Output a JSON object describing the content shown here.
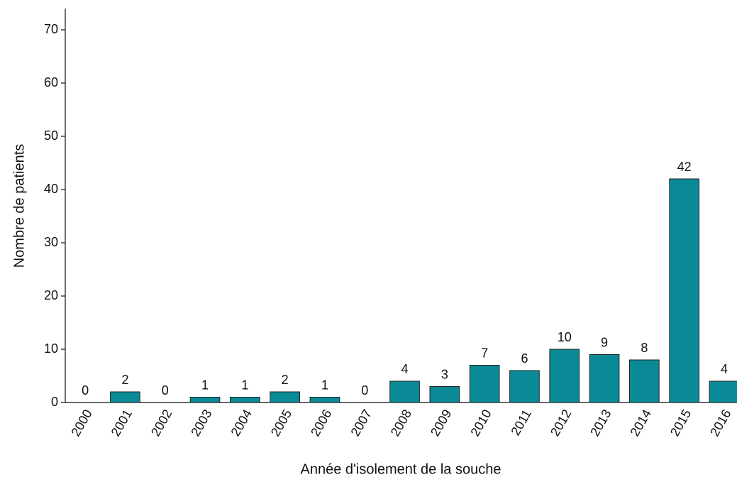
{
  "chart_data": {
    "type": "bar",
    "x_label": "Année d'isolement de la souche",
    "y_label": "Nombre de patients",
    "categories": [
      "2000",
      "2001",
      "2002",
      "2003",
      "2004",
      "2005",
      "2006",
      "2007",
      "2008",
      "2009",
      "2010",
      "2011",
      "2012",
      "2013",
      "2014",
      "2015",
      "2016"
    ],
    "values": [
      0,
      2,
      0,
      1,
      1,
      2,
      1,
      0,
      4,
      3,
      7,
      6,
      10,
      9,
      8,
      42,
      4
    ],
    "color": "#0a8a96",
    "ylim": [
      0,
      74
    ],
    "yticks": [
      0,
      10,
      20,
      30,
      40,
      50,
      60,
      70
    ],
    "grid": false
  }
}
